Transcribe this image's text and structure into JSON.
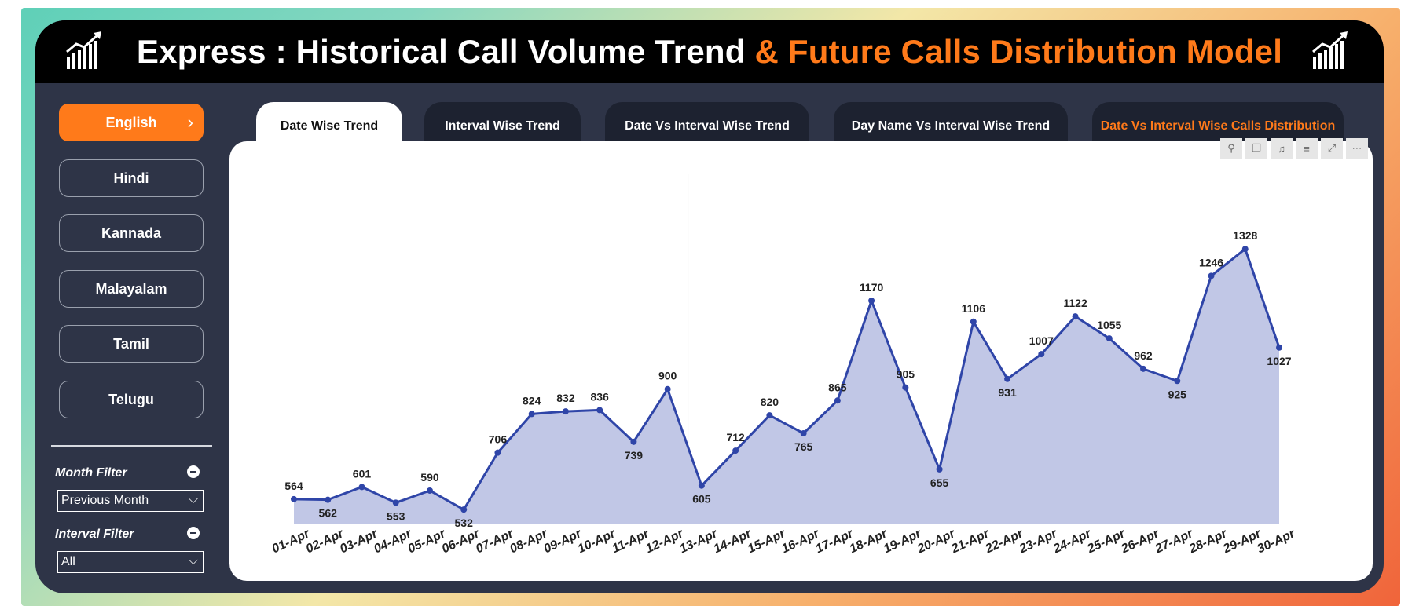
{
  "title": {
    "main": "Express : Historical Call Volume Trend",
    "accent": "& Future Calls Distribution Model"
  },
  "icons": {
    "logo": "growth-chart-icon",
    "chevron": "chevron-right-icon",
    "remove": "minus-circle-icon",
    "dropdown": "chevron-down-icon"
  },
  "languages": [
    "English",
    "Hindi",
    "Kannada",
    "Malayalam",
    "Tamil",
    "Telugu"
  ],
  "active_language": "English",
  "filters": {
    "month": {
      "label": "Month Filter",
      "value": "Previous Month"
    },
    "interval": {
      "label": "Interval Filter",
      "value": "All"
    }
  },
  "tabs": [
    "Date Wise Trend",
    "Interval Wise Trend",
    "Date Vs Interval Wise Trend",
    "Day Name Vs Interval Wise Trend",
    "Date Vs Interval Wise Calls Distribution"
  ],
  "visual_tools": [
    "pin-icon",
    "copy-icon",
    "bell-icon",
    "filter-icon",
    "focus-mode-icon",
    "more-options-icon"
  ],
  "colors": {
    "accent": "#ff7a1a",
    "line": "#2f45a8",
    "area": "#c1c7e6",
    "bg": "#2e3447"
  },
  "chart_data": {
    "type": "area",
    "categories": [
      "01-Apr",
      "02-Apr",
      "03-Apr",
      "04-Apr",
      "05-Apr",
      "06-Apr",
      "07-Apr",
      "08-Apr",
      "09-Apr",
      "10-Apr",
      "11-Apr",
      "12-Apr",
      "13-Apr",
      "14-Apr",
      "15-Apr",
      "16-Apr",
      "17-Apr",
      "18-Apr",
      "19-Apr",
      "20-Apr",
      "21-Apr",
      "22-Apr",
      "23-Apr",
      "24-Apr",
      "25-Apr",
      "26-Apr",
      "27-Apr",
      "28-Apr",
      "29-Apr",
      "30-Apr"
    ],
    "values": [
      564,
      562,
      601,
      553,
      590,
      532,
      706,
      824,
      832,
      836,
      739,
      900,
      605,
      712,
      820,
      765,
      865,
      1170,
      905,
      655,
      1106,
      931,
      1007,
      1122,
      1055,
      962,
      925,
      1246,
      1328,
      1027
    ],
    "data_labels": "on",
    "grid": false
  }
}
